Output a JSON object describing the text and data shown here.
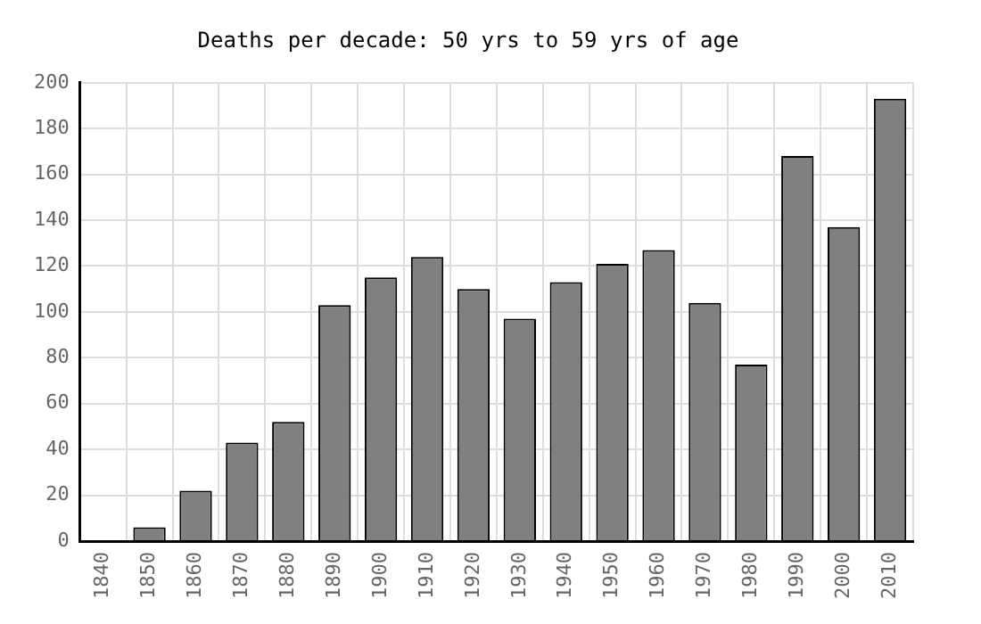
{
  "chart_data": {
    "type": "bar",
    "title": "Deaths per decade: 50 yrs to 59 yrs of age",
    "categories": [
      "1840",
      "1850",
      "1860",
      "1870",
      "1880",
      "1890",
      "1900",
      "1910",
      "1920",
      "1930",
      "1940",
      "1950",
      "1960",
      "1970",
      "1980",
      "1990",
      "2000",
      "2010"
    ],
    "values": [
      0,
      6,
      22,
      43,
      52,
      103,
      115,
      124,
      110,
      97,
      113,
      121,
      127,
      104,
      77,
      168,
      137,
      193
    ],
    "color": "#808080",
    "ylim": [
      0,
      200
    ],
    "yticks": [
      0,
      20,
      40,
      60,
      80,
      100,
      120,
      140,
      160,
      180,
      200
    ],
    "grid": true
  }
}
